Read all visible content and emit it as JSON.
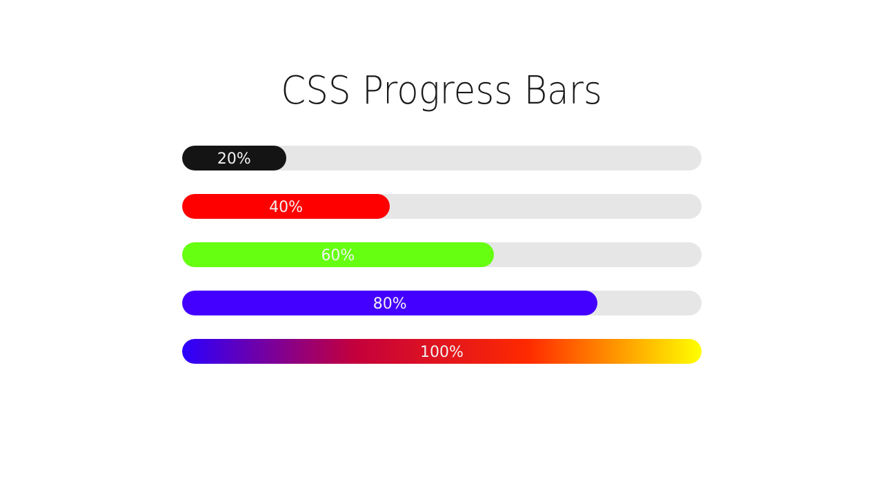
{
  "page": {
    "title": "CSS Progress Bars"
  },
  "bars": [
    {
      "label": "20%",
      "value": 20,
      "color": "#141414"
    },
    {
      "label": "40%",
      "value": 40,
      "color": "#ff0000"
    },
    {
      "label": "60%",
      "value": 60,
      "color": "#66ff11"
    },
    {
      "label": "80%",
      "value": 80,
      "color": "#4400ff"
    },
    {
      "label": "100%",
      "value": 100,
      "gradient": [
        "#2b00ff",
        "#c4003c",
        "#ff2a00",
        "#ffff00"
      ]
    }
  ],
  "track_color": "#e6e6e6"
}
